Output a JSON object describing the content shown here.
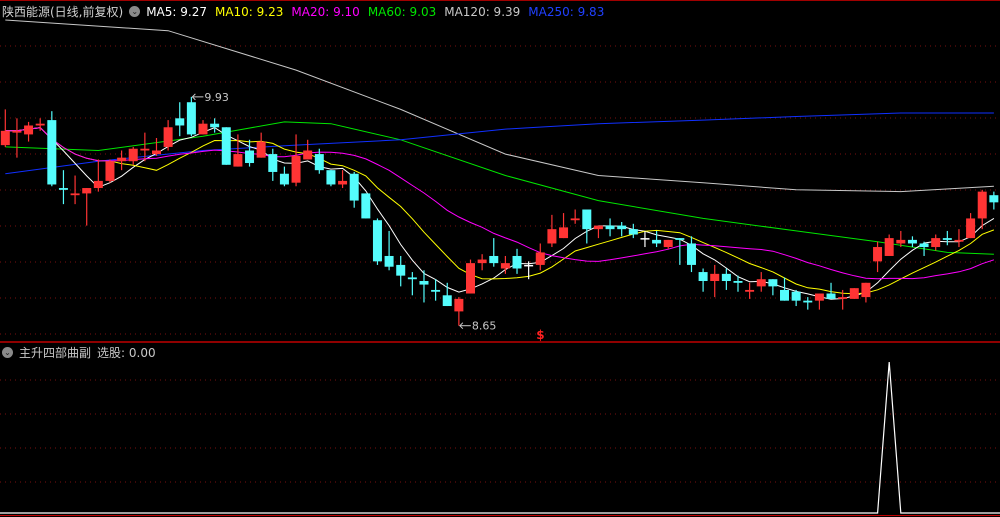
{
  "header": {
    "title": "陕西能源(日线,前复权)",
    "ma_items": [
      {
        "label": "MA5: 9.27",
        "color": "#ffffff"
      },
      {
        "label": "MA10: 9.23",
        "color": "#ffff00"
      },
      {
        "label": "MA20: 9.10",
        "color": "#ff00ff"
      },
      {
        "label": "MA60: 9.03",
        "color": "#00e600"
      },
      {
        "label": "MA120: 9.39",
        "color": "#c8c8c8"
      },
      {
        "label": "MA250: 9.83",
        "color": "#2040ff"
      }
    ]
  },
  "sub_header": {
    "indicator": "主升四部曲副",
    "value_label": "选股: 0.00"
  },
  "chart_data": [
    {
      "type": "candlestick",
      "ylim": [
        8.57,
        10.36
      ],
      "grid": true,
      "colors": {
        "up": "#ff3434",
        "down": "#54fcfc",
        "flat": "#ffffff"
      },
      "candles_ohlc": [
        [
          9.66,
          9.86,
          9.65,
          9.74
        ],
        [
          9.73,
          9.81,
          9.59,
          9.74
        ],
        [
          9.72,
          9.79,
          9.68,
          9.77
        ],
        [
          9.77,
          9.81,
          9.74,
          9.78
        ],
        [
          9.8,
          9.85,
          9.43,
          9.44
        ],
        [
          9.42,
          9.52,
          9.33,
          9.41
        ],
        [
          9.38,
          9.49,
          9.33,
          9.39
        ],
        [
          9.39,
          9.42,
          9.21,
          9.42
        ],
        [
          9.42,
          9.58,
          9.4,
          9.46
        ],
        [
          9.46,
          9.58,
          9.45,
          9.57
        ],
        [
          9.57,
          9.63,
          9.52,
          9.59
        ],
        [
          9.57,
          9.65,
          9.55,
          9.64
        ],
        [
          9.63,
          9.73,
          9.57,
          9.64
        ],
        [
          9.61,
          9.7,
          9.6,
          9.63
        ],
        [
          9.65,
          9.8,
          9.63,
          9.76
        ],
        [
          9.81,
          9.9,
          9.71,
          9.77
        ],
        [
          9.9,
          9.93,
          9.71,
          9.72
        ],
        [
          9.72,
          9.8,
          9.72,
          9.78
        ],
        [
          9.78,
          9.81,
          9.73,
          9.76
        ],
        [
          9.76,
          9.76,
          9.55,
          9.55
        ],
        [
          9.54,
          9.72,
          9.54,
          9.61
        ],
        [
          9.63,
          9.69,
          9.54,
          9.56
        ],
        [
          9.59,
          9.73,
          9.59,
          9.68
        ],
        [
          9.61,
          9.64,
          9.46,
          9.51
        ],
        [
          9.5,
          9.54,
          9.43,
          9.44
        ],
        [
          9.45,
          9.72,
          9.43,
          9.6
        ],
        [
          9.58,
          9.69,
          9.58,
          9.63
        ],
        [
          9.61,
          9.64,
          9.5,
          9.52
        ],
        [
          9.52,
          9.52,
          9.43,
          9.44
        ],
        [
          9.44,
          9.52,
          9.42,
          9.46
        ],
        [
          9.5,
          9.51,
          9.31,
          9.35
        ],
        [
          9.39,
          9.39,
          9.25,
          9.25
        ],
        [
          9.24,
          9.25,
          8.99,
          9.01
        ],
        [
          9.04,
          9.18,
          8.96,
          8.98
        ],
        [
          8.99,
          9.04,
          8.87,
          8.93
        ],
        [
          8.92,
          8.95,
          8.82,
          8.91
        ],
        [
          8.9,
          8.96,
          8.78,
          8.88
        ],
        [
          8.85,
          8.91,
          8.79,
          8.84
        ],
        [
          8.82,
          8.89,
          8.76,
          8.76
        ],
        [
          8.73,
          8.81,
          8.65,
          8.8
        ],
        [
          8.83,
          9.02,
          8.83,
          9.0
        ],
        [
          9.0,
          9.05,
          8.96,
          9.02
        ],
        [
          9.04,
          9.14,
          8.98,
          9.0
        ],
        [
          8.97,
          9.04,
          8.94,
          9.0
        ],
        [
          9.04,
          9.08,
          8.94,
          8.97
        ],
        [
          8.99,
          9.01,
          8.91,
          8.99
        ],
        [
          8.99,
          9.11,
          8.96,
          9.06
        ],
        [
          9.11,
          9.27,
          9.09,
          9.19
        ],
        [
          9.14,
          9.28,
          9.14,
          9.2
        ],
        [
          9.24,
          9.3,
          9.22,
          9.25
        ],
        [
          9.3,
          9.3,
          9.11,
          9.19
        ],
        [
          9.19,
          9.21,
          9.14,
          9.21
        ],
        [
          9.21,
          9.25,
          9.15,
          9.19
        ],
        [
          9.21,
          9.23,
          9.15,
          9.19
        ],
        [
          9.19,
          9.22,
          9.14,
          9.16
        ],
        [
          9.14,
          9.18,
          9.09,
          9.14
        ],
        [
          9.13,
          9.18,
          9.09,
          9.11
        ],
        [
          9.09,
          9.13,
          9.08,
          9.13
        ],
        [
          9.14,
          9.14,
          8.99,
          9.13
        ],
        [
          9.11,
          9.15,
          8.95,
          8.99
        ],
        [
          8.95,
          8.97,
          8.84,
          8.9
        ],
        [
          8.9,
          8.99,
          8.81,
          8.94
        ],
        [
          8.94,
          8.97,
          8.85,
          8.9
        ],
        [
          8.9,
          8.93,
          8.84,
          8.89
        ],
        [
          8.84,
          8.89,
          8.8,
          8.85
        ],
        [
          8.87,
          8.95,
          8.84,
          8.91
        ],
        [
          8.91,
          8.91,
          8.82,
          8.87
        ],
        [
          8.85,
          8.92,
          8.79,
          8.79
        ],
        [
          8.84,
          8.85,
          8.76,
          8.79
        ],
        [
          8.79,
          8.81,
          8.74,
          8.78
        ],
        [
          8.79,
          8.83,
          8.74,
          8.83
        ],
        [
          8.83,
          8.89,
          8.8,
          8.8
        ],
        [
          8.8,
          8.85,
          8.74,
          8.81
        ],
        [
          8.8,
          8.86,
          8.8,
          8.86
        ],
        [
          8.81,
          8.89,
          8.78,
          8.89
        ],
        [
          9.01,
          9.12,
          8.95,
          9.09
        ],
        [
          9.04,
          9.16,
          9.04,
          9.14
        ],
        [
          9.11,
          9.18,
          9.09,
          9.13
        ],
        [
          9.13,
          9.15,
          9.09,
          9.11
        ],
        [
          9.11,
          9.12,
          9.04,
          9.09
        ],
        [
          9.09,
          9.16,
          9.07,
          9.14
        ],
        [
          9.14,
          9.18,
          9.1,
          9.13
        ],
        [
          9.12,
          9.19,
          9.09,
          9.13
        ],
        [
          9.14,
          9.28,
          9.14,
          9.25
        ],
        [
          9.25,
          9.41,
          9.19,
          9.4
        ],
        [
          9.38,
          9.4,
          9.3,
          9.34
        ]
      ],
      "computed_ma": [
        {
          "name": "MA5",
          "period": 5,
          "color": "#ffffff"
        },
        {
          "name": "MA10",
          "period": 10,
          "color": "#ffff00"
        },
        {
          "name": "MA20",
          "period": 20,
          "color": "#ff00ff"
        }
      ],
      "long_ma": [
        {
          "name": "MA60",
          "color": "#00e600",
          "points": [
            [
              0,
              9.65
            ],
            [
              8,
              9.63
            ],
            [
              17,
              9.71
            ],
            [
              24,
              9.79
            ],
            [
              28,
              9.78
            ],
            [
              34,
              9.69
            ],
            [
              43,
              9.49
            ],
            [
              51,
              9.35
            ],
            [
              60,
              9.25
            ],
            [
              68,
              9.18
            ],
            [
              75,
              9.12
            ],
            [
              81,
              9.06
            ],
            [
              85,
              9.05
            ]
          ]
        },
        {
          "name": "MA120",
          "color": "#c8c8c8",
          "points": [
            [
              0,
              10.36
            ],
            [
              14,
              10.3
            ],
            [
              25,
              10.08
            ],
            [
              34,
              9.86
            ],
            [
              43,
              9.61
            ],
            [
              51,
              9.49
            ],
            [
              60,
              9.45
            ],
            [
              68,
              9.41
            ],
            [
              77,
              9.4
            ],
            [
              85,
              9.43
            ]
          ]
        },
        {
          "name": "MA250",
          "color": "#1030ff",
          "points": [
            [
              0,
              9.5
            ],
            [
              8,
              9.57
            ],
            [
              17,
              9.63
            ],
            [
              25,
              9.66
            ],
            [
              34,
              9.69
            ],
            [
              43,
              9.75
            ],
            [
              51,
              9.78
            ],
            [
              60,
              9.8
            ],
            [
              68,
              9.82
            ],
            [
              77,
              9.84
            ],
            [
              85,
              9.84
            ]
          ]
        }
      ],
      "annotations": [
        {
          "text": "9.93",
          "index": 16,
          "price": 9.93,
          "kind": "high"
        },
        {
          "text": "8.65",
          "index": 39,
          "price": 8.65,
          "kind": "low"
        }
      ],
      "signal_marker": {
        "text": "$",
        "index": 46,
        "color": "#ff2020"
      }
    },
    {
      "type": "line",
      "name": "选股",
      "ylim": [
        0,
        1
      ],
      "color": "#ffffff",
      "spike_index": 76,
      "length": 86
    }
  ]
}
